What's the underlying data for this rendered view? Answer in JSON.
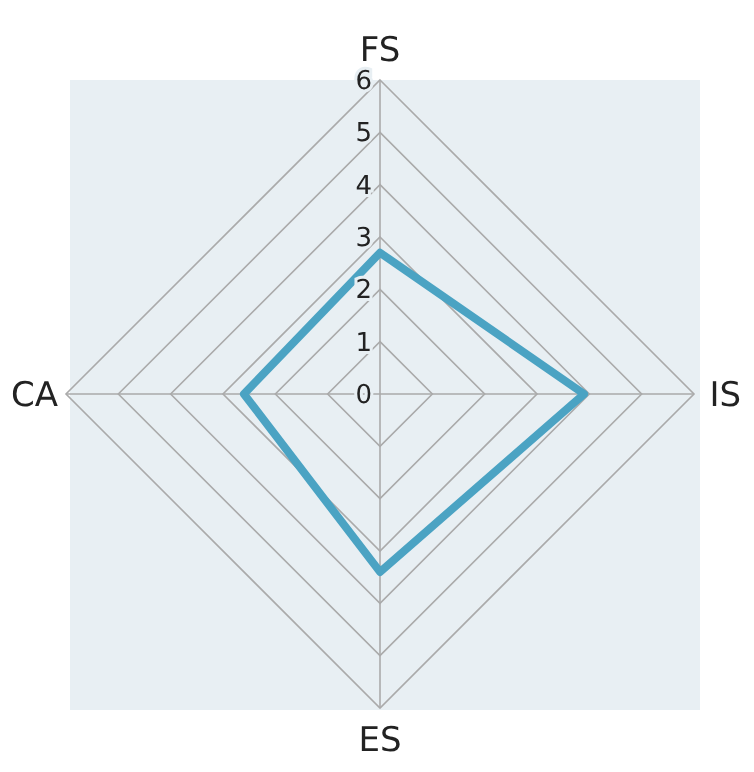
{
  "chart_data": {
    "type": "radar",
    "categories": [
      "FS",
      "IS",
      "ES",
      "CA"
    ],
    "series": [
      {
        "color": "#4ba3c3",
        "values": [
          2.7,
          3.9,
          3.4,
          2.6
        ]
      }
    ],
    "ylim": [
      0,
      6
    ],
    "yticks": [
      0,
      1,
      2,
      3,
      4,
      5,
      6
    ],
    "grid": true,
    "marker": "none"
  }
}
